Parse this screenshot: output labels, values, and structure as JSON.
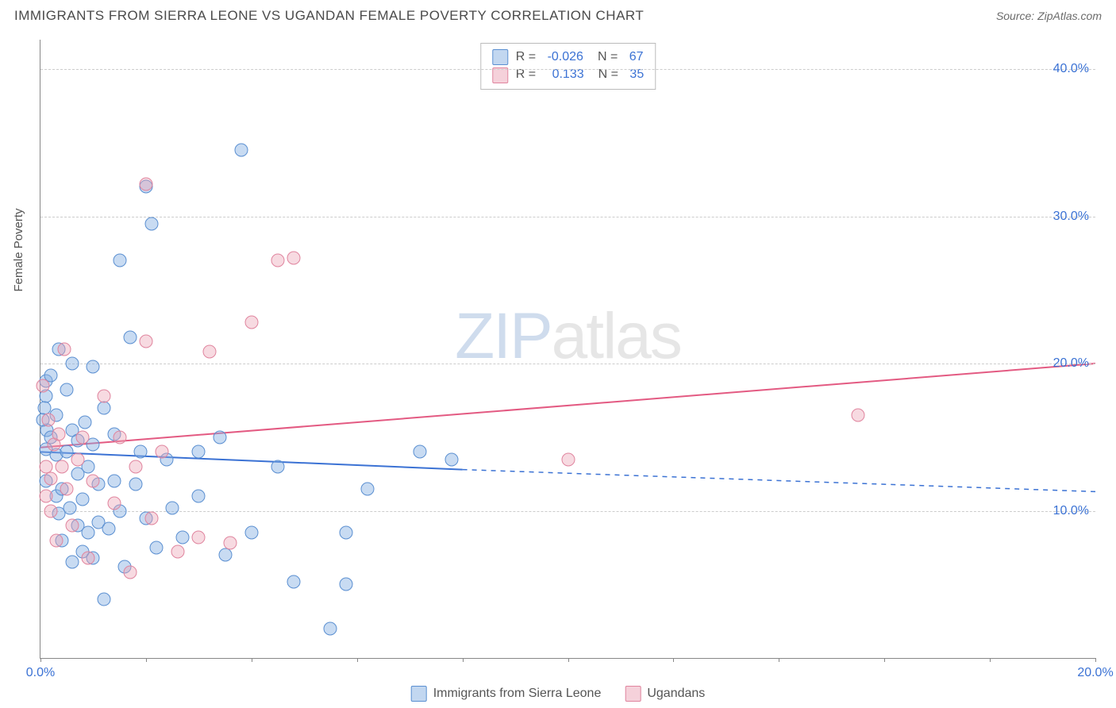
{
  "title": "IMMIGRANTS FROM SIERRA LEONE VS UGANDAN FEMALE POVERTY CORRELATION CHART",
  "source_label": "Source: ",
  "source_value": "ZipAtlas.com",
  "ylabel": "Female Poverty",
  "watermark_zip": "ZIP",
  "watermark_atlas": "atlas",
  "chart": {
    "type": "scatter",
    "xlim": [
      0,
      20
    ],
    "ylim": [
      0,
      42
    ],
    "yticks": [
      10,
      20,
      30,
      40
    ],
    "ytick_labels": [
      "10.0%",
      "20.0%",
      "30.0%",
      "40.0%"
    ],
    "xticks": [
      0,
      2,
      4,
      6,
      8,
      10,
      12,
      14,
      16,
      18,
      20
    ],
    "xtick_labels_shown": {
      "0": "0.0%",
      "20": "20.0%"
    },
    "background_color": "#ffffff",
    "grid_color": "#cccccc",
    "axis_color": "#888888",
    "tick_label_color": "#3b72d4",
    "marker_radius": 8.5,
    "series": [
      {
        "key": "a",
        "name": "Immigrants from Sierra Leone",
        "fill": "rgba(133,175,226,0.45)",
        "stroke": "#5a8fd1",
        "R_label": "R = ",
        "R": "-0.026",
        "N_label": "N = ",
        "N": "67",
        "trend": {
          "x1": 0,
          "y1": 14.0,
          "x2_solid": 8.0,
          "y2_solid": 12.8,
          "x2": 20,
          "y2": 11.3,
          "color": "#3b72d4",
          "width": 2
        },
        "points": [
          [
            0.1,
            17.8
          ],
          [
            0.1,
            18.8
          ],
          [
            0.08,
            17.0
          ],
          [
            0.12,
            15.5
          ],
          [
            0.1,
            14.2
          ],
          [
            0.1,
            12.0
          ],
          [
            0.05,
            16.2
          ],
          [
            0.2,
            15.0
          ],
          [
            0.2,
            19.2
          ],
          [
            0.3,
            16.5
          ],
          [
            0.3,
            11.0
          ],
          [
            0.3,
            13.8
          ],
          [
            0.35,
            9.8
          ],
          [
            0.35,
            21.0
          ],
          [
            0.4,
            11.5
          ],
          [
            0.4,
            8.0
          ],
          [
            0.5,
            14.0
          ],
          [
            0.5,
            18.2
          ],
          [
            0.55,
            10.2
          ],
          [
            0.6,
            15.5
          ],
          [
            0.6,
            20.0
          ],
          [
            0.6,
            6.5
          ],
          [
            0.7,
            9.0
          ],
          [
            0.7,
            12.5
          ],
          [
            0.7,
            14.8
          ],
          [
            0.8,
            7.2
          ],
          [
            0.8,
            10.8
          ],
          [
            0.85,
            16.0
          ],
          [
            0.9,
            8.5
          ],
          [
            0.9,
            13.0
          ],
          [
            1.0,
            14.5
          ],
          [
            1.0,
            19.8
          ],
          [
            1.0,
            6.8
          ],
          [
            1.1,
            9.2
          ],
          [
            1.1,
            11.8
          ],
          [
            1.2,
            17.0
          ],
          [
            1.2,
            4.0
          ],
          [
            1.3,
            8.8
          ],
          [
            1.4,
            12.0
          ],
          [
            1.4,
            15.2
          ],
          [
            1.5,
            27.0
          ],
          [
            1.5,
            10.0
          ],
          [
            1.6,
            6.2
          ],
          [
            1.7,
            21.8
          ],
          [
            1.8,
            11.8
          ],
          [
            1.9,
            14.0
          ],
          [
            2.0,
            32.0
          ],
          [
            2.0,
            9.5
          ],
          [
            2.1,
            29.5
          ],
          [
            2.2,
            7.5
          ],
          [
            2.4,
            13.5
          ],
          [
            2.5,
            10.2
          ],
          [
            2.7,
            8.2
          ],
          [
            3.0,
            14.0
          ],
          [
            3.0,
            11.0
          ],
          [
            3.4,
            15.0
          ],
          [
            3.5,
            7.0
          ],
          [
            3.8,
            34.5
          ],
          [
            4.0,
            8.5
          ],
          [
            4.5,
            13.0
          ],
          [
            4.8,
            5.2
          ],
          [
            5.5,
            2.0
          ],
          [
            5.8,
            8.5
          ],
          [
            5.8,
            5.0
          ],
          [
            6.2,
            11.5
          ],
          [
            7.2,
            14.0
          ],
          [
            7.8,
            13.5
          ]
        ]
      },
      {
        "key": "b",
        "name": "Ugandans",
        "fill": "rgba(236,163,181,0.40)",
        "stroke": "#e0849e",
        "R_label": "R = ",
        "R": "0.133",
        "N_label": "N = ",
        "N": "35",
        "trend": {
          "x1": 0,
          "y1": 14.3,
          "x2_solid": 20,
          "y2_solid": 20.0,
          "x2": 20,
          "y2": 20.0,
          "color": "#e35a82",
          "width": 2
        },
        "points": [
          [
            0.05,
            18.5
          ],
          [
            0.1,
            13.0
          ],
          [
            0.1,
            11.0
          ],
          [
            0.15,
            16.2
          ],
          [
            0.2,
            12.2
          ],
          [
            0.2,
            10.0
          ],
          [
            0.25,
            14.5
          ],
          [
            0.3,
            8.0
          ],
          [
            0.35,
            15.2
          ],
          [
            0.4,
            13.0
          ],
          [
            0.45,
            21.0
          ],
          [
            0.5,
            11.5
          ],
          [
            0.6,
            9.0
          ],
          [
            0.7,
            13.5
          ],
          [
            0.8,
            15.0
          ],
          [
            0.9,
            6.8
          ],
          [
            1.0,
            12.0
          ],
          [
            1.2,
            17.8
          ],
          [
            1.4,
            10.5
          ],
          [
            1.5,
            15.0
          ],
          [
            1.7,
            5.8
          ],
          [
            1.8,
            13.0
          ],
          [
            2.0,
            32.2
          ],
          [
            2.0,
            21.5
          ],
          [
            2.1,
            9.5
          ],
          [
            2.3,
            14.0
          ],
          [
            2.6,
            7.2
          ],
          [
            3.0,
            8.2
          ],
          [
            3.2,
            20.8
          ],
          [
            3.6,
            7.8
          ],
          [
            4.0,
            22.8
          ],
          [
            4.5,
            27.0
          ],
          [
            4.8,
            27.2
          ],
          [
            10.0,
            13.5
          ],
          [
            15.5,
            16.5
          ]
        ]
      }
    ]
  },
  "bottom_legend": {
    "items": [
      {
        "swatch": "a",
        "label": "Immigrants from Sierra Leone"
      },
      {
        "swatch": "b",
        "label": "Ugandans"
      }
    ]
  }
}
